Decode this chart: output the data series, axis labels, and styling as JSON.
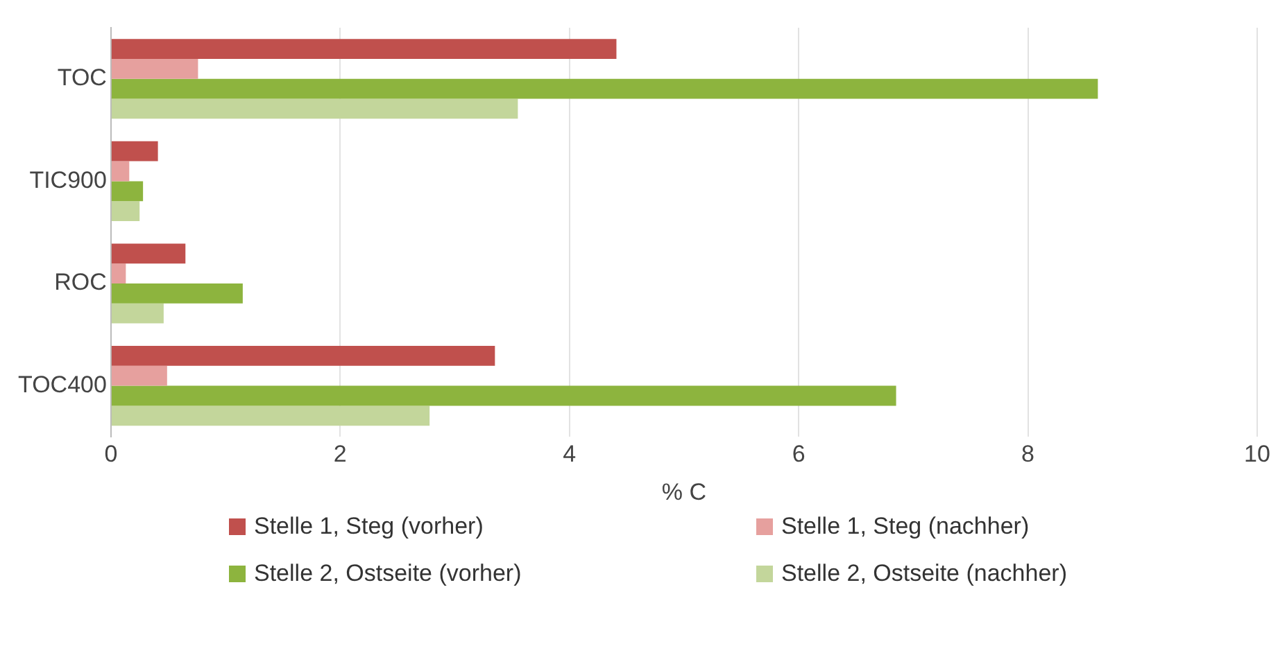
{
  "chart_data": {
    "type": "bar",
    "orientation": "horizontal",
    "xlabel": "% C",
    "categories": [
      "TOC",
      "TIC900",
      "ROC",
      "TOC400"
    ],
    "series": [
      {
        "name": "Stelle 1, Steg (vorher)",
        "color": "#c0504d",
        "values": [
          4.41,
          0.41,
          0.65,
          3.35
        ]
      },
      {
        "name": "Stelle 1, Steg (nachher)",
        "color": "#e6a09e",
        "values": [
          0.76,
          0.16,
          0.13,
          0.49
        ]
      },
      {
        "name": "Stelle 2, Ostseite (vorher)",
        "color": "#8db43e",
        "values": [
          8.61,
          0.28,
          1.15,
          6.85
        ]
      },
      {
        "name": "Stelle 2, Ostseite (nachher)",
        "color": "#c3d69b",
        "values": [
          3.55,
          0.25,
          0.46,
          2.78
        ]
      }
    ],
    "xlim": [
      0,
      10
    ],
    "xticks": [
      0,
      2,
      4,
      6,
      8,
      10
    ],
    "grid": "x",
    "legend": "bottom"
  }
}
